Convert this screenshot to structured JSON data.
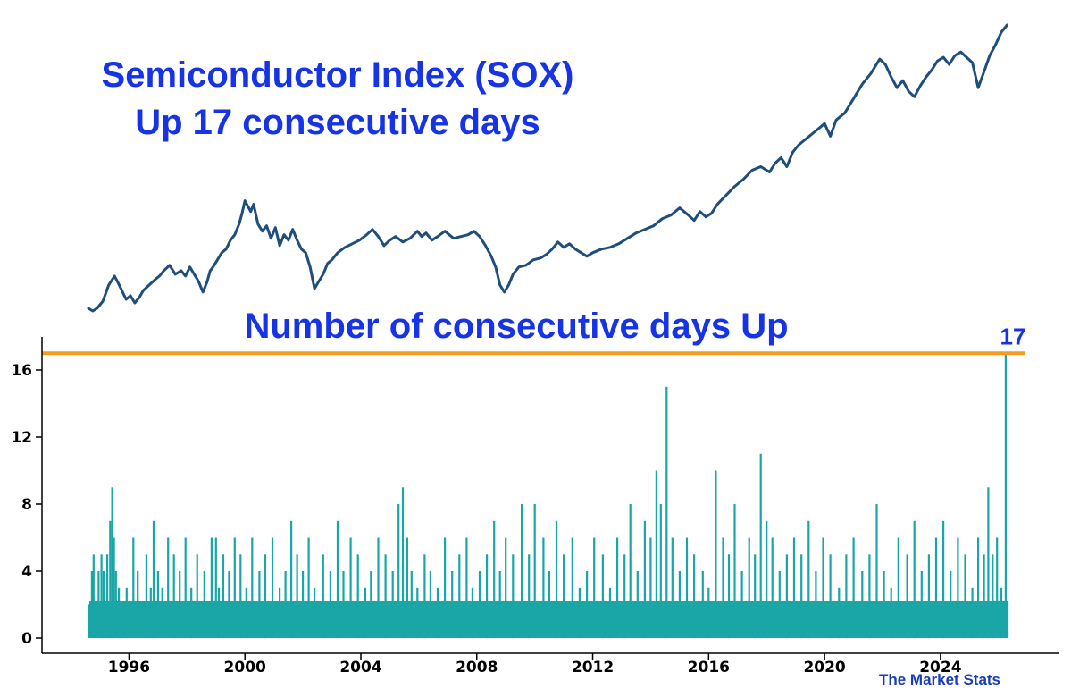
{
  "colors": {
    "sox_line": "#1f4e7d",
    "bars": "#1aa6a6",
    "threshold_line": "#f39c1e",
    "titles": "#1633e6",
    "watermark": "#1a3cb8",
    "axis": "#000000"
  },
  "watermark": "The Market Stats",
  "chart_data": [
    {
      "type": "line",
      "title_line1": "Semiconductor Index (SOX)",
      "title_line2": "Up 17 consecutive days",
      "series": [
        {
          "x": [
            1994.6,
            1994.75,
            1994.9,
            1995.1,
            1995.3,
            1995.5,
            1995.6,
            1995.75,
            1995.9,
            1996.05,
            1996.2,
            1996.35,
            1996.5,
            1996.7,
            1996.9,
            1997.05,
            1997.2,
            1997.4,
            1997.6,
            1997.8,
            1997.95,
            1998.1,
            1998.25,
            1998.4,
            1998.55,
            1998.7,
            1998.8,
            1998.9,
            1999.05,
            1999.2,
            1999.35,
            1999.5,
            1999.65,
            1999.8,
            1999.9,
            2000.0,
            2000.1,
            2000.2,
            2000.3,
            2000.45,
            2000.6,
            2000.75,
            2000.9,
            2001.05,
            2001.2,
            2001.35,
            2001.5,
            2001.65,
            2001.8,
            2001.95,
            2002.1,
            2002.25,
            2002.4,
            2002.55,
            2002.7,
            2002.85,
            2003.0,
            2003.2,
            2003.45,
            2003.7,
            2003.95,
            2004.2,
            2004.4,
            2004.6,
            2004.8,
            2005.0,
            2005.2,
            2005.45,
            2005.7,
            2005.95,
            2006.1,
            2006.25,
            2006.45,
            2006.65,
            2006.9,
            2007.2,
            2007.45,
            2007.7,
            2007.9,
            2008.1,
            2008.3,
            2008.5,
            2008.65,
            2008.8,
            2008.95,
            2009.1,
            2009.25,
            2009.45,
            2009.7,
            2009.95,
            2010.2,
            2010.4,
            2010.6,
            2010.8,
            2011.0,
            2011.2,
            2011.4,
            2011.6,
            2011.8,
            2012.0,
            2012.3,
            2012.6,
            2012.9,
            2013.2,
            2013.5,
            2013.8,
            2014.1,
            2014.4,
            2014.7,
            2015.0,
            2015.3,
            2015.5,
            2015.7,
            2015.9,
            2016.1,
            2016.3,
            2016.6,
            2016.9,
            2017.2,
            2017.5,
            2017.8,
            2018.1,
            2018.3,
            2018.5,
            2018.7,
            2018.9,
            2019.1,
            2019.4,
            2019.7,
            2020.0,
            2020.2,
            2020.4,
            2020.7,
            2021.0,
            2021.3,
            2021.6,
            2021.9,
            2022.1,
            2022.3,
            2022.5,
            2022.7,
            2022.9,
            2023.1,
            2023.3,
            2023.5,
            2023.7,
            2023.9,
            2024.1,
            2024.3,
            2024.5,
            2024.7,
            2024.9,
            2025.1,
            2025.3,
            2025.5,
            2025.7,
            2025.9,
            2026.1,
            2026.3
          ],
          "y": [
            9,
            7.5,
            9,
            13,
            22,
            27,
            24,
            19,
            14,
            16,
            12,
            15,
            19,
            22,
            25,
            27,
            30,
            33,
            28,
            30,
            27,
            32,
            28,
            24,
            18,
            24,
            30,
            32,
            36,
            40,
            42,
            47,
            50,
            56,
            62,
            69,
            66,
            63,
            67,
            56,
            52,
            55,
            48,
            54,
            44,
            50,
            47,
            53,
            47,
            42,
            40,
            32,
            20,
            24,
            28,
            34,
            36,
            40,
            43,
            45,
            47,
            50,
            53,
            49,
            44,
            47,
            49,
            46,
            48,
            52,
            49,
            51,
            47,
            49,
            52,
            48,
            49,
            50,
            52,
            49,
            44,
            38,
            32,
            22,
            18,
            22,
            28,
            32,
            33,
            36,
            37,
            39,
            42,
            46,
            43,
            45,
            42,
            40,
            38,
            40,
            42,
            43,
            45,
            48,
            51,
            53,
            55,
            59,
            61,
            65,
            61,
            58,
            63,
            60,
            62,
            67,
            72,
            77,
            81,
            86,
            88,
            85,
            90,
            93,
            88,
            96,
            100,
            104,
            108,
            112,
            105,
            114,
            118,
            126,
            134,
            140,
            148,
            145,
            138,
            132,
            136,
            130,
            127,
            133,
            138,
            142,
            147,
            149,
            145,
            150,
            152,
            149,
            146,
            132,
            141,
            150,
            156,
            163,
            167
          ]
        }
      ]
    },
    {
      "type": "bar",
      "title": "Number of consecutive days Up",
      "threshold_label": "17",
      "threshold_value": 17,
      "xlim": [
        1994.6,
        2026.5
      ],
      "ylim": [
        0,
        18
      ],
      "x_ticks": [
        "1996",
        "2000",
        "2004",
        "2008",
        "2012",
        "2016",
        "2020",
        "2024"
      ],
      "x_tick_values": [
        1996,
        2000,
        2004,
        2008,
        2012,
        2016,
        2020,
        2024
      ],
      "y_ticks": [
        "0",
        "4",
        "8",
        "12",
        "16"
      ],
      "y_tick_values": [
        0,
        4,
        8,
        12,
        16
      ],
      "series": [
        {
          "x": [
            1994.63,
            1994.72,
            1994.78,
            1994.95,
            1995.05,
            1995.12,
            1995.25,
            1995.35,
            1995.42,
            1995.48,
            1995.55,
            1995.65,
            1995.8,
            1995.92,
            1996.15,
            1996.3,
            1996.45,
            1996.6,
            1996.75,
            1996.85,
            1997.0,
            1997.15,
            1997.35,
            1997.55,
            1997.75,
            1997.95,
            1998.15,
            1998.35,
            1998.6,
            1998.85,
            1999.0,
            1999.1,
            1999.25,
            1999.45,
            1999.65,
            1999.85,
            2000.05,
            2000.25,
            2000.5,
            2000.7,
            2000.95,
            2001.2,
            2001.4,
            2001.6,
            2001.8,
            2002.0,
            2002.2,
            2002.4,
            2002.7,
            2002.95,
            2003.2,
            2003.4,
            2003.65,
            2003.9,
            2004.15,
            2004.35,
            2004.6,
            2004.85,
            2005.1,
            2005.3,
            2005.45,
            2005.6,
            2005.75,
            2005.95,
            2006.2,
            2006.4,
            2006.65,
            2006.9,
            2007.15,
            2007.4,
            2007.65,
            2007.85,
            2008.1,
            2008.35,
            2008.6,
            2008.8,
            2009.0,
            2009.25,
            2009.55,
            2009.8,
            2010.0,
            2010.3,
            2010.5,
            2010.75,
            2011.0,
            2011.3,
            2011.55,
            2011.8,
            2012.05,
            2012.35,
            2012.6,
            2012.85,
            2013.1,
            2013.3,
            2013.55,
            2013.8,
            2014.0,
            2014.2,
            2014.35,
            2014.55,
            2014.75,
            2015.0,
            2015.25,
            2015.5,
            2015.8,
            2016.0,
            2016.25,
            2016.5,
            2016.7,
            2016.9,
            2017.15,
            2017.4,
            2017.6,
            2017.8,
            2018.0,
            2018.2,
            2018.45,
            2018.7,
            2018.95,
            2019.2,
            2019.45,
            2019.7,
            2019.95,
            2020.2,
            2020.5,
            2020.75,
            2021.0,
            2021.3,
            2021.55,
            2021.8,
            2022.05,
            2022.3,
            2022.55,
            2022.85,
            2023.1,
            2023.35,
            2023.6,
            2023.85,
            2024.1,
            2024.35,
            2024.6,
            2024.85,
            2025.1,
            2025.3,
            2025.5,
            2025.65,
            2025.8,
            2025.95,
            2026.1,
            2026.25
          ],
          "values": [
            2,
            4,
            5,
            4,
            5,
            4,
            5,
            7,
            9,
            6,
            4,
            3,
            2,
            3,
            6,
            4,
            2,
            5,
            3,
            7,
            4,
            3,
            6,
            5,
            4,
            6,
            3,
            5,
            4,
            6,
            6,
            3,
            5,
            4,
            6,
            5,
            3,
            6,
            4,
            5,
            6,
            3,
            4,
            7,
            5,
            4,
            6,
            3,
            5,
            4,
            7,
            4,
            6,
            5,
            3,
            4,
            6,
            5,
            4,
            8,
            9,
            6,
            4,
            3,
            5,
            4,
            3,
            6,
            4,
            5,
            6,
            3,
            4,
            5,
            7,
            4,
            6,
            5,
            8,
            5,
            8,
            6,
            4,
            7,
            5,
            6,
            3,
            4,
            6,
            5,
            3,
            6,
            5,
            8,
            4,
            7,
            6,
            10,
            8,
            15,
            6,
            4,
            6,
            5,
            4,
            3,
            10,
            6,
            5,
            8,
            4,
            6,
            5,
            11,
            7,
            6,
            4,
            5,
            6,
            5,
            7,
            4,
            6,
            5,
            3,
            5,
            6,
            4,
            5,
            8,
            4,
            3,
            6,
            5,
            7,
            4,
            5,
            6,
            7,
            4,
            6,
            5,
            3,
            6,
            5,
            9,
            5,
            6,
            3,
            17
          ]
        }
      ]
    }
  ]
}
